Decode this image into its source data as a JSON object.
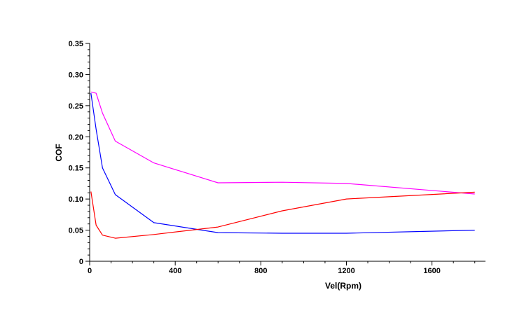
{
  "chart_data": {
    "type": "line",
    "title": "",
    "xlabel": "Vel(Rpm)",
    "ylabel": "COF",
    "xlim": [
      0,
      1850
    ],
    "ylim": [
      0,
      0.35
    ],
    "x_ticks": [
      0,
      400,
      800,
      1200,
      1600
    ],
    "x_tick_labels": [
      "0",
      "400",
      "800",
      "1200",
      "1600"
    ],
    "y_ticks": [
      0,
      0.05,
      0.1,
      0.15,
      0.2,
      0.25,
      0.3,
      0.35
    ],
    "y_tick_labels": [
      "0",
      "0.05",
      "0.10",
      "0.15",
      "0.20",
      "0.25",
      "0.30",
      "0.35"
    ],
    "grid": false,
    "legend": "none",
    "series": [
      {
        "color": "#ff00ff",
        "x": [
          6,
          30,
          60,
          120,
          300,
          600,
          900,
          1200,
          1800
        ],
        "y": [
          0.272,
          0.27,
          0.238,
          0.193,
          0.158,
          0.126,
          0.127,
          0.125,
          0.108
        ]
      },
      {
        "color": "#0000ff",
        "x": [
          6,
          30,
          60,
          120,
          300,
          600,
          900,
          1200,
          1800
        ],
        "y": [
          0.27,
          0.212,
          0.15,
          0.107,
          0.062,
          0.046,
          0.045,
          0.045,
          0.05
        ]
      },
      {
        "color": "#ff0000",
        "x": [
          6,
          30,
          60,
          120,
          300,
          600,
          900,
          1200,
          1800
        ],
        "y": [
          0.112,
          0.058,
          0.042,
          0.037,
          0.043,
          0.055,
          0.081,
          0.1,
          0.111
        ]
      }
    ]
  }
}
